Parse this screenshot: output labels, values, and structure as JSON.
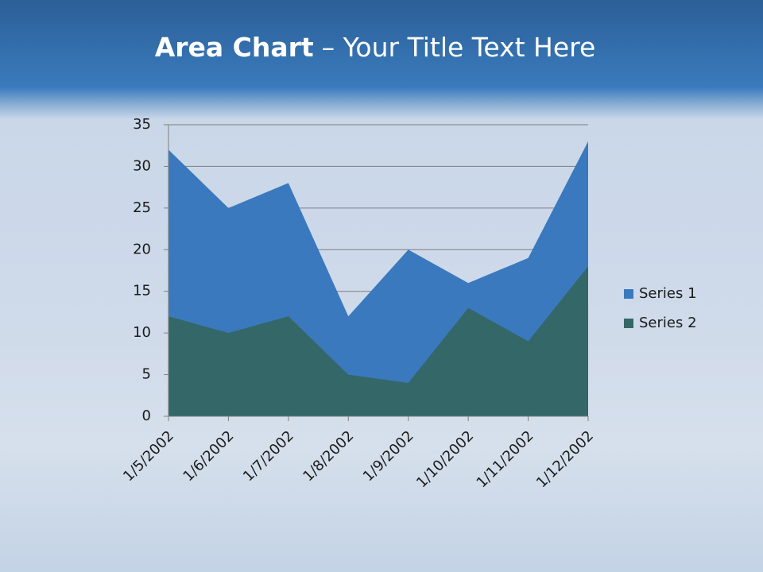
{
  "chart_data": {
    "type": "area",
    "title_parts": [
      "Area Chart",
      "– Your Title Text Here"
    ],
    "categories": [
      "1/5/2002",
      "1/6/2002",
      "1/7/2002",
      "1/8/2002",
      "1/9/2002",
      "1/10/2002",
      "1/11/2002",
      "1/12/2002"
    ],
    "series": [
      {
        "name": "Series 1",
        "color": "#3a79bd",
        "values": [
          32,
          25,
          28,
          12,
          20,
          16,
          19,
          33
        ]
      },
      {
        "name": "Series 2",
        "color": "#346767",
        "values": [
          12,
          10,
          12,
          5,
          4,
          13,
          9,
          18
        ]
      }
    ],
    "ylim": [
      0,
      35
    ],
    "yticks": [
      0,
      5,
      10,
      15,
      20,
      25,
      30,
      35
    ],
    "grid": true,
    "legend": "right"
  }
}
